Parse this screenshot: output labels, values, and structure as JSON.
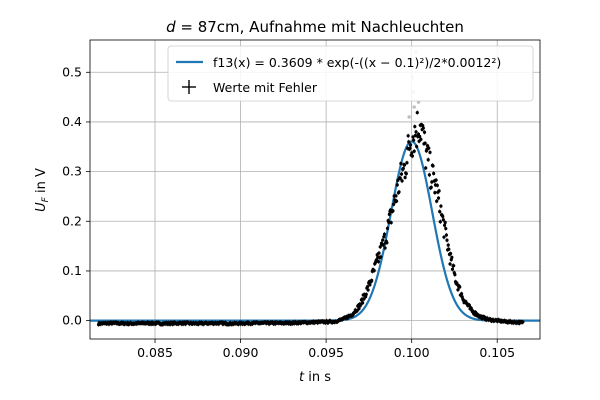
{
  "chart_data": {
    "type": "scatter",
    "title_parts": [
      "d",
      " = 87cm, Aufnahme mit Nachleuchten"
    ],
    "xlabel_parts": [
      "t",
      " in s"
    ],
    "ylabel_parts": [
      "U",
      "F",
      " in V"
    ],
    "xlim": [
      0.0812,
      0.1075
    ],
    "ylim": [
      -0.037,
      0.565
    ],
    "xticks": [
      0.085,
      0.09,
      0.095,
      0.1,
      0.105
    ],
    "xtick_labels": [
      "0.085",
      "0.090",
      "0.095",
      "0.100",
      "0.105"
    ],
    "yticks": [
      0.0,
      0.1,
      0.2,
      0.3,
      0.4,
      0.5
    ],
    "ytick_labels": [
      "0.0",
      "0.1",
      "0.2",
      "0.3",
      "0.4",
      "0.5"
    ],
    "grid": true,
    "legend_position": "top-right",
    "fit": {
      "legend_label": "f13(x) = 0.3609 * exp(-((x − 0.1)²)/2*0.0012²)",
      "amplitude": 0.3609,
      "center": 0.1,
      "sigma": 0.0012,
      "x_range": [
        0.0812,
        0.1075
      ],
      "color": "#1f77b4"
    },
    "measurements": {
      "legend_label": "Werte mit Fehler",
      "color": "#000000",
      "x_range": [
        0.0817,
        0.1065
      ],
      "points": [
        [
          0.0817,
          -0.006
        ],
        [
          0.0825,
          -0.005
        ],
        [
          0.0835,
          -0.006
        ],
        [
          0.0845,
          -0.005
        ],
        [
          0.0855,
          -0.006
        ],
        [
          0.0865,
          -0.005
        ],
        [
          0.0875,
          -0.006
        ],
        [
          0.0885,
          -0.005
        ],
        [
          0.0895,
          -0.006
        ],
        [
          0.0905,
          -0.005
        ],
        [
          0.0915,
          -0.005
        ],
        [
          0.0925,
          -0.005
        ],
        [
          0.0935,
          -0.004
        ],
        [
          0.0945,
          -0.003
        ],
        [
          0.0955,
          -0.002
        ],
        [
          0.096,
          0.003
        ],
        [
          0.0965,
          0.012
        ],
        [
          0.097,
          0.032
        ],
        [
          0.0975,
          0.07
        ],
        [
          0.098,
          0.12
        ],
        [
          0.0985,
          0.17
        ],
        [
          0.099,
          0.24
        ],
        [
          0.0993,
          0.28
        ],
        [
          0.0996,
          0.31
        ],
        [
          0.0999,
          0.36
        ],
        [
          0.1002,
          0.38
        ],
        [
          0.1005,
          0.4
        ],
        [
          0.1008,
          0.34
        ],
        [
          0.1011,
          0.3
        ],
        [
          0.1014,
          0.27
        ],
        [
          0.1017,
          0.22
        ],
        [
          0.102,
          0.17
        ],
        [
          0.1023,
          0.12
        ],
        [
          0.1026,
          0.08
        ],
        [
          0.103,
          0.045
        ],
        [
          0.1035,
          0.02
        ],
        [
          0.104,
          0.008
        ],
        [
          0.1045,
          0.002
        ],
        [
          0.105,
          0.0
        ],
        [
          0.1055,
          -0.002
        ],
        [
          0.106,
          -0.003
        ],
        [
          0.1065,
          -0.004
        ]
      ],
      "outliers": [
        [
          0.10025,
          0.54
        ],
        [
          0.10005,
          0.49
        ],
        [
          0.1001,
          0.46
        ],
        [
          0.10015,
          0.43
        ],
        [
          0.09985,
          0.41
        ],
        [
          0.1004,
          0.44
        ]
      ]
    }
  }
}
